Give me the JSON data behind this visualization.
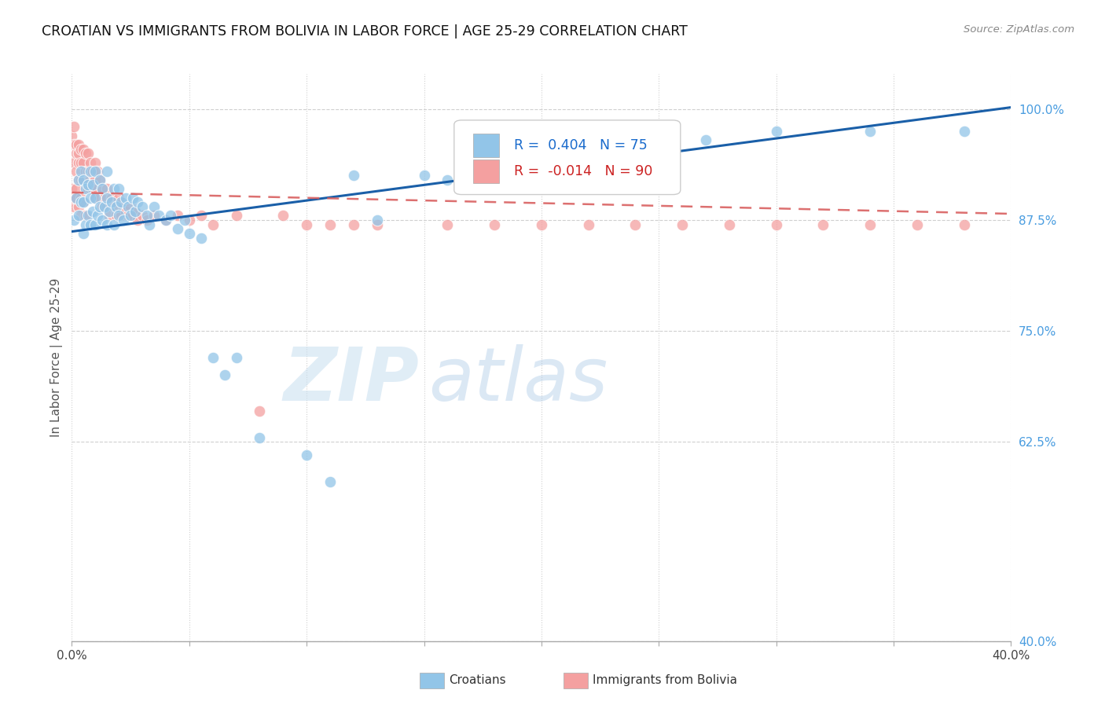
{
  "title": "CROATIAN VS IMMIGRANTS FROM BOLIVIA IN LABOR FORCE | AGE 25-29 CORRELATION CHART",
  "source": "Source: ZipAtlas.com",
  "ylabel": "In Labor Force | Age 25-29",
  "xlim": [
    0.0,
    0.4
  ],
  "ylim": [
    0.4,
    1.04
  ],
  "xtick_positions": [
    0.0,
    0.05,
    0.1,
    0.15,
    0.2,
    0.25,
    0.3,
    0.35,
    0.4
  ],
  "xtick_labels": [
    "0.0%",
    "",
    "",
    "",
    "",
    "",
    "",
    "",
    "40.0%"
  ],
  "ytick_positions": [
    0.4,
    0.625,
    0.75,
    0.875,
    1.0
  ],
  "ytick_labels": [
    "40.0%",
    "62.5%",
    "75.0%",
    "87.5%",
    "100.0%"
  ],
  "blue_color": "#92c5e8",
  "pink_color": "#f4a0a0",
  "trendline_blue": "#1a5fa8",
  "trendline_pink": "#d96060",
  "legend_R_blue": "0.404",
  "legend_N_blue": "75",
  "legend_R_pink": "-0.014",
  "legend_N_pink": "90",
  "blue_points_x": [
    0.001,
    0.002,
    0.003,
    0.003,
    0.004,
    0.004,
    0.005,
    0.005,
    0.005,
    0.006,
    0.006,
    0.007,
    0.007,
    0.008,
    0.008,
    0.008,
    0.009,
    0.009,
    0.01,
    0.01,
    0.01,
    0.011,
    0.012,
    0.012,
    0.013,
    0.013,
    0.014,
    0.015,
    0.015,
    0.015,
    0.016,
    0.017,
    0.018,
    0.018,
    0.019,
    0.02,
    0.02,
    0.021,
    0.022,
    0.023,
    0.024,
    0.025,
    0.026,
    0.027,
    0.028,
    0.03,
    0.032,
    0.033,
    0.035,
    0.037,
    0.04,
    0.042,
    0.045,
    0.048,
    0.05,
    0.055,
    0.06,
    0.065,
    0.07,
    0.08,
    0.1,
    0.11,
    0.12,
    0.13,
    0.15,
    0.16,
    0.17,
    0.18,
    0.2,
    0.22,
    0.25,
    0.27,
    0.3,
    0.34,
    0.38
  ],
  "blue_points_y": [
    0.875,
    0.9,
    0.88,
    0.92,
    0.895,
    0.93,
    0.86,
    0.895,
    0.92,
    0.87,
    0.91,
    0.88,
    0.915,
    0.87,
    0.9,
    0.93,
    0.885,
    0.915,
    0.87,
    0.9,
    0.93,
    0.88,
    0.89,
    0.92,
    0.875,
    0.91,
    0.89,
    0.87,
    0.9,
    0.93,
    0.885,
    0.895,
    0.87,
    0.91,
    0.89,
    0.88,
    0.91,
    0.895,
    0.875,
    0.9,
    0.89,
    0.88,
    0.9,
    0.885,
    0.895,
    0.89,
    0.88,
    0.87,
    0.89,
    0.88,
    0.875,
    0.88,
    0.865,
    0.875,
    0.86,
    0.855,
    0.72,
    0.7,
    0.72,
    0.63,
    0.61,
    0.58,
    0.925,
    0.875,
    0.925,
    0.92,
    0.925,
    0.96,
    0.975,
    0.965,
    0.97,
    0.965,
    0.975,
    0.975,
    0.975
  ],
  "pink_points_x": [
    0.0,
    0.001,
    0.001,
    0.001,
    0.002,
    0.002,
    0.002,
    0.003,
    0.003,
    0.003,
    0.003,
    0.004,
    0.004,
    0.004,
    0.005,
    0.005,
    0.005,
    0.006,
    0.006,
    0.006,
    0.007,
    0.007,
    0.007,
    0.008,
    0.008,
    0.008,
    0.009,
    0.009,
    0.01,
    0.01,
    0.01,
    0.011,
    0.011,
    0.012,
    0.012,
    0.013,
    0.013,
    0.014,
    0.015,
    0.015,
    0.016,
    0.017,
    0.018,
    0.019,
    0.02,
    0.021,
    0.022,
    0.023,
    0.024,
    0.025,
    0.026,
    0.027,
    0.028,
    0.03,
    0.032,
    0.035,
    0.04,
    0.045,
    0.05,
    0.055,
    0.06,
    0.07,
    0.08,
    0.09,
    0.1,
    0.11,
    0.12,
    0.13,
    0.16,
    0.18,
    0.2,
    0.22,
    0.24,
    0.26,
    0.28,
    0.3,
    0.32,
    0.34,
    0.36,
    0.38,
    0.0,
    0.001,
    0.001,
    0.002,
    0.002,
    0.003,
    0.004,
    0.004,
    0.005,
    0.006
  ],
  "pink_points_y": [
    0.97,
    0.96,
    0.94,
    0.98,
    0.95,
    0.93,
    0.96,
    0.94,
    0.96,
    0.92,
    0.95,
    0.94,
    0.92,
    0.955,
    0.94,
    0.92,
    0.955,
    0.93,
    0.95,
    0.91,
    0.93,
    0.95,
    0.91,
    0.94,
    0.91,
    0.92,
    0.93,
    0.91,
    0.92,
    0.94,
    0.9,
    0.93,
    0.91,
    0.92,
    0.9,
    0.91,
    0.89,
    0.9,
    0.89,
    0.91,
    0.88,
    0.9,
    0.89,
    0.88,
    0.9,
    0.88,
    0.89,
    0.885,
    0.88,
    0.89,
    0.88,
    0.885,
    0.875,
    0.88,
    0.875,
    0.88,
    0.875,
    0.88,
    0.875,
    0.88,
    0.87,
    0.88,
    0.66,
    0.88,
    0.87,
    0.87,
    0.87,
    0.87,
    0.87,
    0.87,
    0.87,
    0.87,
    0.87,
    0.87,
    0.87,
    0.87,
    0.87,
    0.87,
    0.87,
    0.87,
    0.91,
    0.89,
    0.9,
    0.91,
    0.9,
    0.89,
    0.9,
    0.88,
    0.895,
    0.88
  ]
}
